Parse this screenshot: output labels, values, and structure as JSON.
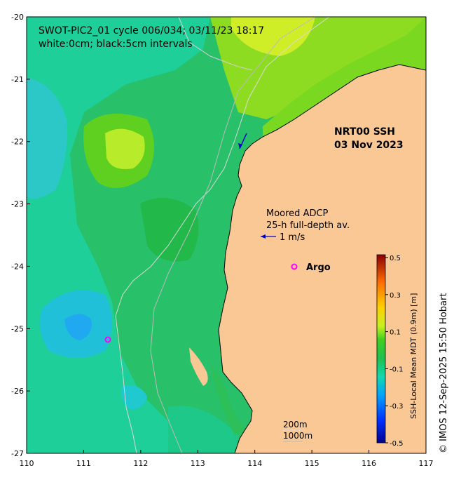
{
  "title_line1": "SWOT-PIC2_01 cycle 006/034; 03/11/23 18:17",
  "title_line2": "white:0cm; black:5cm intervals",
  "product_label": "NRT00 SSH",
  "product_date": "03 Nov 2023",
  "adcp_label_line1": "Moored ADCP",
  "adcp_label_line2": "25-h full-depth av.",
  "velocity_scale_label": "1 m/s",
  "argo_label": "Argo",
  "isobath_200": "200m",
  "isobath_1000": "1000m",
  "colorbar": {
    "label": "SSH-Local Mean MDT (0.9m) [m]",
    "ticks": [
      "0.5",
      "0.3",
      "0.1",
      "-0.1",
      "-0.3",
      "-0.5"
    ],
    "min": -0.5,
    "max": 0.5
  },
  "credit": "© IMOS 12-Sep-2025 15:50 Hobart",
  "axes": {
    "x_ticks": [
      "110",
      "111",
      "112",
      "113",
      "114",
      "115",
      "116",
      "117"
    ],
    "y_ticks": [
      "-20",
      "-21",
      "-22",
      "-23",
      "-24",
      "-25",
      "-26",
      "-27"
    ],
    "lon_range": [
      110,
      117
    ],
    "lat_range": [
      -27,
      -20
    ]
  },
  "colors": {
    "land": "#fac894",
    "ocean_mid": "#2ec05a",
    "ocean_low": "#1ecfa0",
    "ocean_high": "#c8ee2a",
    "argo": "#ff00ff",
    "arrow": "#0000cc"
  }
}
